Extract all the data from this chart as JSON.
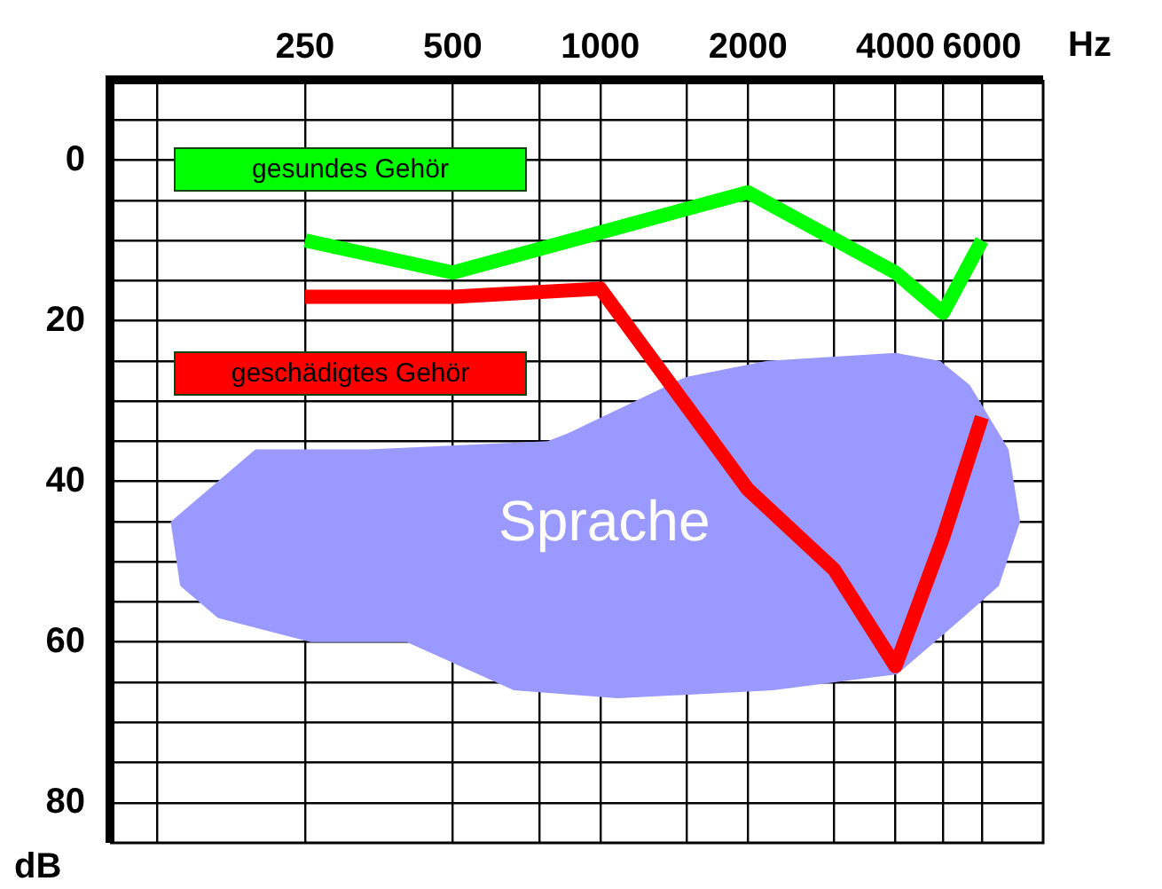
{
  "chart_data": {
    "type": "line",
    "xlabel": "Hz",
    "ylabel": "dB",
    "log": "x",
    "xlim": [
      100,
      8000
    ],
    "xticks": [
      {
        "value": 125,
        "label": null
      },
      250,
      500,
      {
        "value": 750,
        "label": null
      },
      1000,
      {
        "value": 1500,
        "label": null
      },
      2000,
      {
        "value": 3000,
        "label": null
      },
      4000,
      {
        "value": 5000,
        "label": null
      },
      6000
    ],
    "ylim": [
      85,
      -10
    ],
    "yticks": [
      {
        "value": -5,
        "label": null
      },
      0,
      {
        "value": 5,
        "label": null
      },
      {
        "value": 10,
        "label": null
      },
      {
        "value": 15,
        "label": null
      },
      20,
      {
        "value": 25,
        "label": null
      },
      {
        "value": 30,
        "label": null
      },
      {
        "value": 35,
        "label": null
      },
      40,
      {
        "value": 45,
        "label": null
      },
      {
        "value": 50,
        "label": null
      },
      {
        "value": 55,
        "label": null
      },
      60,
      {
        "value": 65,
        "label": null
      },
      {
        "value": 70,
        "label": null
      },
      {
        "value": 75,
        "label": null
      },
      80
    ],
    "grid": true,
    "legend": "top left",
    "marker": "none",
    "line_style": "solid",
    "series": [
      {
        "name": "Sprache",
        "type": "area",
        "color": "#9999ff",
        "x": [
          133,
          198,
          336,
          781,
          860,
          1494,
          2188,
          4000,
          4930,
          5670,
          6800,
          7180,
          6500,
          5480,
          4030,
          2250,
          1085,
          666,
          403,
          257,
          166,
          139
        ],
        "values": [
          45,
          36,
          36,
          35,
          34,
          27,
          25,
          24,
          25,
          28,
          36,
          45,
          53,
          57,
          64,
          66,
          67,
          66,
          60,
          60,
          57,
          53
        ]
      },
      {
        "name": "gesundes Gehör",
        "type": "line",
        "color": "#00ff00",
        "x": [
          250,
          500,
          1000,
          2000,
          4000,
          5000,
          6000
        ],
        "values": [
          10,
          14,
          9,
          4,
          14,
          19,
          10
        ]
      },
      {
        "name": "geschädigtes Gehör",
        "type": "line",
        "color": "#ff0000",
        "x": [
          250,
          500,
          1000,
          2000,
          3000,
          4000,
          5000,
          6000
        ],
        "values": [
          17,
          17,
          16,
          41,
          51,
          63,
          47,
          32
        ]
      }
    ]
  }
}
